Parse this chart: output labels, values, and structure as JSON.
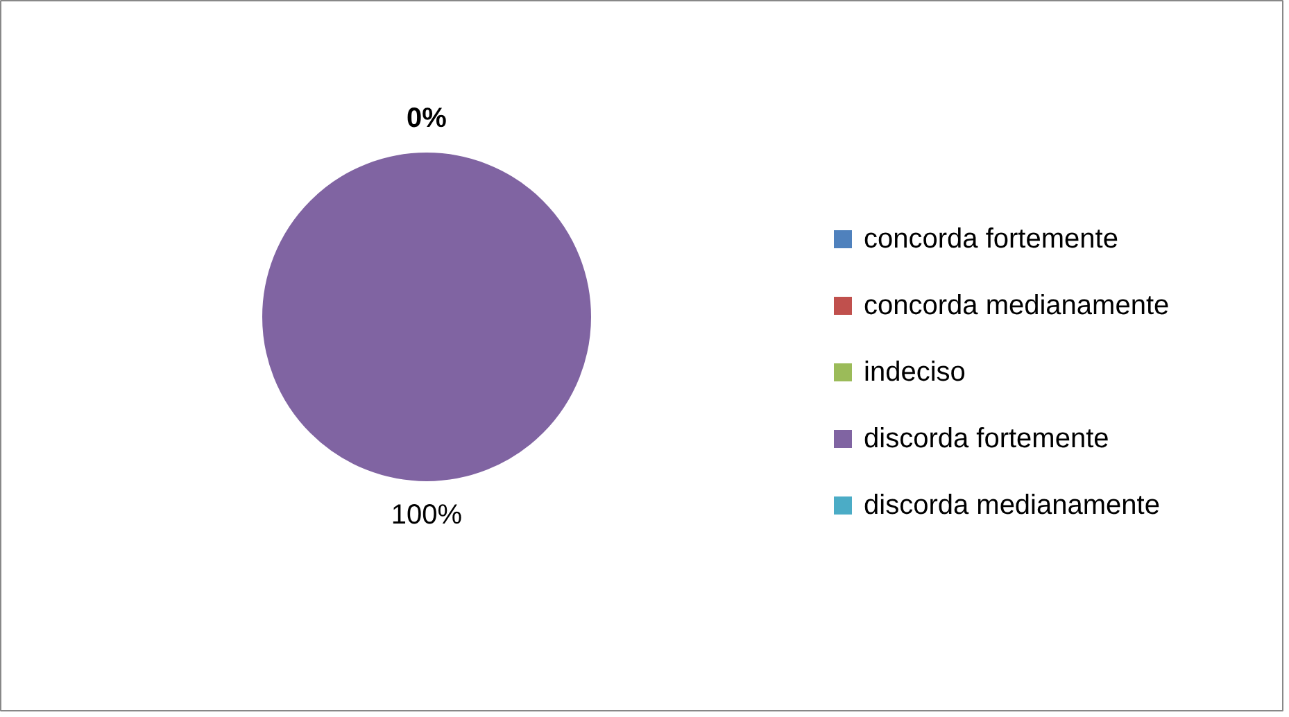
{
  "chart_data": {
    "type": "pie",
    "categories": [
      "concorda fortemente",
      "concorda medianamente",
      "indeciso",
      "discorda fortemente",
      "discorda medianamente"
    ],
    "values": [
      0,
      0,
      0,
      100,
      0
    ],
    "colors": [
      "#4f81bd",
      "#c0504d",
      "#9bbb59",
      "#8064a2",
      "#4bacc6"
    ],
    "value_labels": [
      "0%",
      null,
      null,
      "100%",
      null
    ],
    "legend": "right"
  }
}
